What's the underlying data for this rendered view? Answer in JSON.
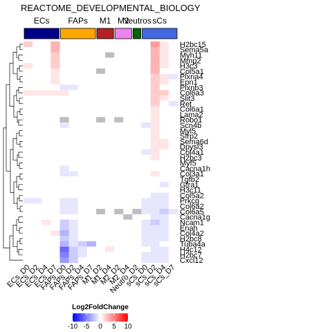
{
  "chart_data": {
    "type": "heatmap",
    "title": "REACTOME_DEVELOPMENTAL_BIOLOGY",
    "groups": [
      {
        "label": "ECs",
        "color": "#00008B",
        "columns": 4
      },
      {
        "label": "FAPs",
        "color": "#FFA500",
        "columns": 4
      },
      {
        "label": "M1",
        "color": "#B22222",
        "columns": 2
      },
      {
        "label": "M2",
        "color": "#EE82EE",
        "columns": 2
      },
      {
        "label": "Neutros",
        "color": "#006400",
        "columns": 1
      },
      {
        "label": "sCs",
        "color": "#4169E1",
        "columns": 4
      }
    ],
    "columns": [
      "ECs_D0",
      "ECs_D2",
      "ECs_D4",
      "ECs_D7",
      "FAPs_D0",
      "FAPs_D2",
      "FAPs_D4",
      "FAPs_D7",
      "M1_D2",
      "M1_D4",
      "M2_D2",
      "M2_D4",
      "Neutro_D2",
      "sCs_D0",
      "sCs_D2",
      "sCs_D4",
      "sCs_D7"
    ],
    "rows": [
      "H2bc15",
      "Sema5a",
      "Myh11",
      "Mmp2",
      "H3c3",
      "Col5a1",
      "Plxna4",
      " Epn1",
      "Plxnb3",
      "Col6a3",
      "Slit3",
      "Ret",
      "Col6a1",
      "Lama2",
      "Robo1",
      "Scn4b",
      "Myl5",
      "Sfrp2",
      "Sema6d",
      "Dpysl3",
      "Col4a1",
      "H2bc3",
      "Myf5",
      "Cacna1h",
      "Col3a1",
      "Tgfb2",
      "Gfra1",
      "H3c11",
      "Col5a2",
      "Prkcg",
      "Col6a2",
      "Col6a5",
      "Cacna1g",
      "Ncam1",
      "Enah",
      "Col4a2",
      "H2bc8",
      "Tuba4a",
      "H4c12",
      "H2bc7",
      "Cxcl12"
    ],
    "values": [
      [
        2,
        0,
        0,
        3,
        0,
        0,
        0,
        0,
        0,
        0,
        0,
        0,
        0,
        0,
        4,
        1,
        0
      ],
      [
        0,
        0,
        0,
        3,
        0,
        0,
        0,
        0,
        0,
        0,
        0,
        0,
        0,
        0,
        3,
        1,
        0
      ],
      [
        0,
        0,
        0,
        2,
        0,
        0,
        0,
        0,
        0,
        null,
        0,
        0,
        0,
        0,
        3,
        1,
        0
      ],
      [
        0,
        0,
        0,
        2,
        0,
        0,
        0,
        0,
        0,
        0,
        0,
        0,
        0,
        0,
        3,
        1,
        0
      ],
      [
        1,
        0,
        0,
        2,
        0,
        0,
        0,
        0,
        0,
        0,
        0,
        0,
        0,
        0,
        3,
        1,
        0
      ],
      [
        0,
        0,
        0,
        1,
        0,
        0,
        0,
        0,
        null,
        0,
        0,
        0,
        0,
        0,
        3,
        0,
        0
      ],
      [
        0,
        0,
        0,
        1,
        0,
        0,
        0,
        0,
        0,
        0,
        0,
        0,
        0,
        0,
        2,
        1,
        -1
      ],
      [
        0,
        0,
        0,
        1,
        0,
        0,
        0,
        0,
        0,
        0,
        0,
        0,
        0,
        0,
        2,
        1,
        0
      ],
      [
        0,
        0,
        0,
        0,
        -1,
        -1,
        0,
        0,
        0,
        0,
        0,
        0,
        0,
        0,
        2,
        0,
        0
      ],
      [
        1,
        1,
        1,
        1,
        1,
        0,
        0,
        0,
        0,
        0,
        0,
        0,
        0,
        0,
        2,
        2,
        0
      ],
      [
        0,
        0,
        0,
        0,
        0,
        0,
        0,
        0,
        0,
        0,
        0,
        0,
        0,
        0,
        2,
        1,
        0
      ],
      [
        0,
        0,
        0,
        0,
        0,
        0,
        0,
        0,
        0,
        0,
        0,
        0,
        0,
        0,
        2,
        0,
        -1
      ],
      [
        0,
        0,
        0,
        0,
        0,
        0,
        0,
        0,
        0,
        0,
        0,
        0,
        0,
        0,
        1,
        0,
        0
      ],
      [
        0,
        0,
        0,
        0,
        0,
        0,
        0,
        0,
        0,
        0,
        0,
        0,
        0,
        0,
        1,
        0,
        0
      ],
      [
        0,
        0,
        0,
        0,
        null,
        0,
        0,
        0,
        null,
        0,
        null,
        0,
        0,
        0,
        1,
        0,
        0
      ],
      [
        0,
        0,
        0,
        0,
        -1,
        0,
        0,
        0,
        0,
        0,
        0,
        0,
        0,
        -1,
        1,
        0,
        0
      ],
      [
        0,
        0,
        0,
        0,
        0,
        0,
        0,
        0,
        0,
        0,
        0,
        0,
        0,
        0,
        1,
        0,
        0
      ],
      [
        0,
        0,
        0,
        0,
        0,
        0,
        0,
        0,
        0,
        0,
        0,
        0,
        0,
        0,
        1,
        0,
        0
      ],
      [
        0,
        0,
        0,
        0,
        0,
        0,
        0,
        0,
        0,
        0,
        0,
        0,
        0,
        0,
        1,
        1,
        0
      ],
      [
        0,
        0,
        0,
        0,
        0,
        0,
        0,
        0,
        0,
        0,
        0,
        0,
        0,
        0,
        1,
        1,
        0
      ],
      [
        0,
        0,
        0,
        0,
        0,
        0,
        0,
        0,
        0,
        0,
        0,
        0,
        0,
        -1,
        1,
        0,
        0
      ],
      [
        0,
        0,
        0,
        0,
        0,
        0,
        0,
        0,
        0,
        0,
        0,
        0,
        0,
        0,
        1,
        0,
        0
      ],
      [
        0,
        0,
        0,
        0,
        0,
        0,
        0,
        0,
        0,
        0,
        0,
        0,
        0,
        0,
        0,
        0,
        0
      ],
      [
        0,
        0,
        0,
        0,
        -1,
        0,
        0,
        0,
        0,
        0,
        0,
        0,
        0,
        0,
        0,
        0,
        0
      ],
      [
        0,
        0,
        0,
        0,
        -1,
        -1,
        0,
        0,
        0,
        0,
        0,
        0,
        0,
        0,
        1,
        0,
        0
      ],
      [
        0,
        0,
        0,
        0,
        0,
        0,
        0,
        0,
        0,
        0,
        0,
        0,
        0,
        0,
        0,
        0,
        0
      ],
      [
        0,
        0,
        0,
        0,
        0,
        0,
        0,
        0,
        0,
        0,
        0,
        0,
        0,
        0,
        0,
        -1,
        0
      ],
      [
        0,
        0,
        0,
        0,
        0,
        0,
        0,
        0,
        0,
        0,
        0,
        0,
        0,
        0,
        0,
        0,
        0
      ],
      [
        0,
        0,
        0,
        0,
        0,
        0,
        0,
        0,
        0,
        0,
        0,
        0,
        0,
        0,
        -1,
        -1,
        0
      ],
      [
        -1,
        -1,
        0,
        0,
        -1,
        -1,
        0,
        0,
        0,
        0,
        0,
        0,
        0,
        -1,
        -1,
        -1,
        0
      ],
      [
        0,
        0,
        0,
        0,
        -1,
        -1,
        0,
        0,
        0,
        0,
        0,
        0,
        0,
        -1,
        -1,
        -1,
        0
      ],
      [
        0,
        0,
        0,
        0,
        -1,
        -1,
        0,
        0,
        null,
        0,
        null,
        0,
        null,
        -1,
        -1,
        -2,
        -1
      ],
      [
        0,
        0,
        0,
        0,
        0,
        0,
        0,
        0,
        0,
        0,
        0,
        null,
        0,
        0,
        -1,
        -1,
        0
      ],
      [
        0,
        0,
        1,
        0,
        -2,
        -1,
        0,
        0,
        0,
        0,
        0,
        0,
        0,
        -1,
        -2,
        -1,
        0
      ],
      [
        0,
        0,
        0,
        0,
        -2,
        -1,
        0,
        0,
        0,
        0,
        0,
        0,
        0,
        -1,
        -1,
        -1,
        0
      ],
      [
        0,
        0,
        0,
        1,
        -3,
        -1,
        0,
        0,
        0,
        0,
        0,
        0,
        0,
        -1,
        -1,
        -1,
        0
      ],
      [
        0,
        0,
        0,
        0,
        -2,
        -1,
        0,
        0,
        0,
        0,
        0,
        0,
        0,
        -1,
        -1,
        -1,
        0
      ],
      [
        0,
        0,
        0,
        0,
        -3,
        -1,
        -2,
        -3,
        0,
        0,
        0,
        0,
        0,
        -1,
        -1,
        0,
        0
      ],
      [
        0,
        0,
        0,
        0,
        -6,
        -2,
        -1,
        0,
        0,
        1,
        0,
        0,
        0,
        0,
        -1,
        -1,
        0
      ],
      [
        0,
        0,
        0,
        0,
        -5,
        -2,
        -1,
        0,
        0,
        0,
        0,
        0,
        0,
        -1,
        -1,
        -1,
        0
      ],
      [
        0,
        0,
        0,
        0,
        -4,
        -2,
        0,
        0,
        0,
        0,
        0,
        0,
        0,
        -1,
        -1,
        -1,
        0
      ]
    ],
    "na_color": "#BEBEBE",
    "legend": {
      "title": "Log2FoldChange",
      "ticks": [
        "-10",
        "-5",
        "0",
        "5",
        "10"
      ],
      "min": -10,
      "max": 10,
      "low_color": "#0000FF",
      "mid_color": "#FFFFFF",
      "high_color": "#FF0000"
    }
  }
}
